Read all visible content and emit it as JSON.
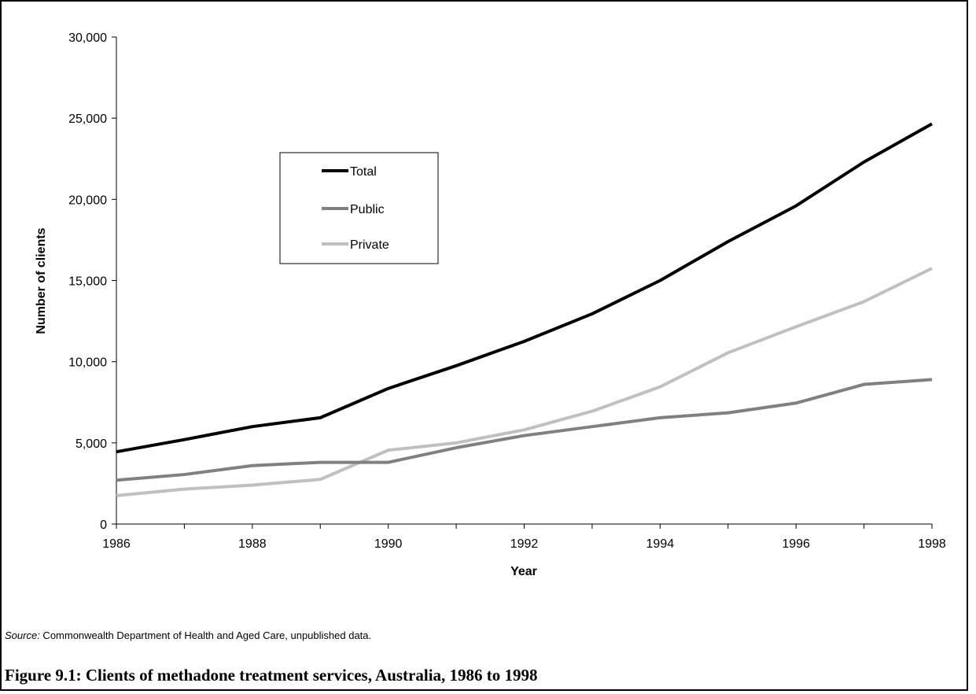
{
  "chart_data": {
    "type": "line",
    "x": [
      1986,
      1987,
      1988,
      1989,
      1990,
      1991,
      1992,
      1993,
      1994,
      1995,
      1996,
      1997,
      1998
    ],
    "series": [
      {
        "name": "Total",
        "color": "#000000",
        "values": [
          4450,
          5200,
          6000,
          6550,
          8350,
          9750,
          11250,
          12950,
          15000,
          17400,
          19600,
          22300,
          24650
        ]
      },
      {
        "name": "Public",
        "color": "#808080",
        "values": [
          2700,
          3050,
          3600,
          3800,
          3800,
          4700,
          5450,
          6000,
          6550,
          6850,
          7450,
          8600,
          8900
        ]
      },
      {
        "name": "Private",
        "color": "#c0c0c0",
        "values": [
          1750,
          2150,
          2400,
          2750,
          4550,
          5000,
          5800,
          6950,
          8450,
          10550,
          12150,
          13700,
          15750
        ]
      }
    ],
    "xlabel": "Year",
    "ylabel": "Number of clients",
    "ylim": [
      0,
      30000
    ],
    "xlim": [
      1986,
      1998
    ],
    "x_tick_labels": [
      "1986",
      "1988",
      "1990",
      "1992",
      "1994",
      "1996",
      "1998"
    ],
    "y_tick_labels": [
      "0",
      "5,000",
      "10,000",
      "15,000",
      "20,000",
      "25,000",
      "30,000"
    ],
    "grid": false,
    "legend_placement": "upper-left-center"
  },
  "source": {
    "label": "Source:",
    "text": " Commonwealth Department of Health and Aged Care, unpublished data."
  },
  "caption": "Figure 9.1: Clients of methadone treatment services, Australia, 1986 to 1998"
}
